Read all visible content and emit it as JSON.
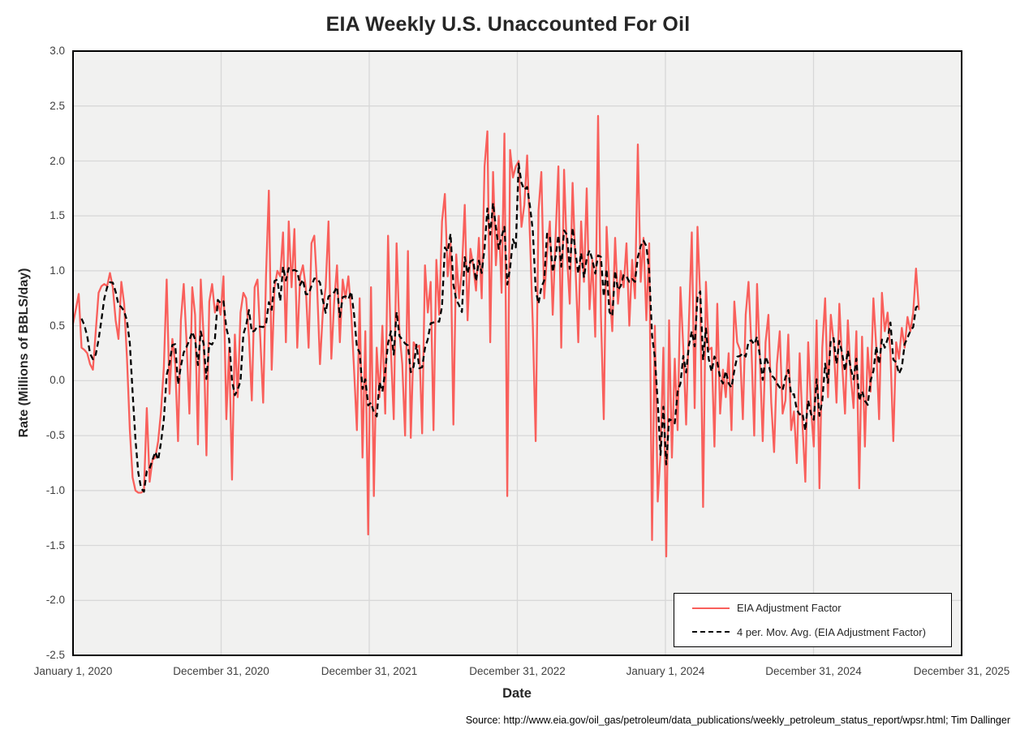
{
  "page": {
    "source_note": "Source: http://www.eia.gov/oil_gas/petroleum/data_publications/weekly_petroleum_status_report/wpsr.html; Tim Dallinger"
  },
  "chart_data": {
    "type": "line",
    "title": "EIA Weekly U.S. Unaccounted For Oil",
    "xlabel": "Date",
    "ylabel": "Rate (Millions of BBLS/day)",
    "ylim": [
      -2.5,
      3.0
    ],
    "ytick_step": 0.5,
    "grid": true,
    "plot_bg_color": "#F1F1F0",
    "grid_color": "#D8D8D8",
    "axis_border_color": "#000000",
    "legend_position": "bottom-right",
    "x_frequency": "weekly",
    "points_per_year": 52.18,
    "x_tick_labels": [
      "January 1, 2020",
      "December 31, 2020",
      "December 31, 2021",
      "December 31, 2022",
      "January 1, 2024",
      "December 31, 2024",
      "December 31, 2025"
    ],
    "series": [
      {
        "name": "EIA Adjustment Factor",
        "color": "#F95F5B",
        "line_style": "solid",
        "start_label": "January 1, 2020",
        "values": [
          0.52,
          0.65,
          0.79,
          0.3,
          0.28,
          0.25,
          0.15,
          0.1,
          0.45,
          0.8,
          0.86,
          0.88,
          0.86,
          0.98,
          0.85,
          0.55,
          0.38,
          0.9,
          0.7,
          0.2,
          -0.45,
          -0.88,
          -1.0,
          -1.02,
          -1.02,
          -1.0,
          -0.25,
          -0.92,
          -0.72,
          -0.7,
          -0.55,
          -0.28,
          0.12,
          0.92,
          -0.12,
          0.38,
          0.15,
          -0.55,
          0.55,
          0.88,
          0.35,
          -0.3,
          0.85,
          0.6,
          -0.58,
          0.92,
          0.4,
          -0.68,
          0.72,
          0.88,
          0.62,
          0.72,
          0.6,
          0.95,
          -0.35,
          0.3,
          -0.9,
          0.42,
          -0.15,
          0.62,
          0.8,
          0.75,
          0.4,
          -0.18,
          0.85,
          0.92,
          0.38,
          -0.2,
          0.95,
          1.73,
          0.1,
          0.85,
          1.0,
          0.95,
          1.35,
          0.35,
          1.45,
          0.85,
          1.38,
          0.3,
          0.95,
          1.05,
          0.85,
          0.3,
          1.25,
          1.32,
          0.85,
          0.15,
          0.62,
          0.85,
          1.45,
          0.2,
          0.72,
          1.05,
          0.35,
          0.92,
          0.75,
          0.95,
          0.62,
          0.1,
          -0.45,
          0.75,
          -0.7,
          0.45,
          -1.4,
          0.85,
          -1.05,
          0.3,
          -0.15,
          0.5,
          -0.3,
          1.32,
          0.28,
          -0.35,
          1.25,
          0.45,
          0.15,
          -0.5,
          1.18,
          -0.52,
          0.35,
          0.3,
          0.32,
          -0.48,
          1.05,
          0.62,
          0.9,
          -0.45,
          1.1,
          0.6,
          1.45,
          1.7,
          0.95,
          1.25,
          -0.4,
          1.15,
          0.75,
          1.0,
          1.6,
          0.55,
          1.2,
          1.05,
          0.82,
          1.3,
          0.75,
          1.95,
          2.27,
          0.35,
          1.9,
          1.05,
          1.5,
          0.8,
          2.25,
          -1.05,
          2.1,
          1.85,
          1.95,
          2.0,
          1.4,
          1.6,
          2.05,
          1.3,
          0.5,
          -0.55,
          1.55,
          1.9,
          0.75,
          1.15,
          1.45,
          0.6,
          1.3,
          1.95,
          0.3,
          1.92,
          1.15,
          0.7,
          1.8,
          1.05,
          0.35,
          1.45,
          0.9,
          1.75,
          0.65,
          1.1,
          0.4,
          2.41,
          0.6,
          -0.35,
          1.4,
          0.85,
          0.45,
          1.3,
          0.7,
          1.0,
          0.85,
          1.25,
          0.5,
          1.1,
          0.75,
          2.15,
          0.9,
          1.3,
          0.55,
          1.25,
          -1.45,
          0.5,
          -1.1,
          -0.65,
          0.3,
          -1.6,
          0.55,
          -0.7,
          0.2,
          -0.45,
          0.85,
          0.3,
          -0.4,
          0.55,
          1.35,
          -0.25,
          1.4,
          0.75,
          -1.15,
          0.9,
          0.28,
          0.3,
          -0.6,
          0.7,
          -0.3,
          0.1,
          -0.15,
          0.25,
          -0.45,
          0.72,
          0.35,
          0.28,
          -0.35,
          0.6,
          0.9,
          0.32,
          -0.5,
          0.88,
          0.2,
          -0.55,
          0.35,
          0.6,
          -0.2,
          -0.65,
          0.15,
          0.45,
          -0.3,
          -0.18,
          0.42,
          -0.45,
          -0.28,
          -0.75,
          0.25,
          -0.4,
          -0.92,
          0.35,
          -0.25,
          -0.6,
          0.55,
          -0.98,
          0.3,
          0.75,
          -0.15,
          0.6,
          0.35,
          -0.2,
          0.7,
          0.15,
          -0.3,
          0.55,
          0.05,
          -0.25,
          0.45,
          -0.98,
          0.4,
          -0.6,
          0.3,
          -0.1,
          0.75,
          0.3,
          -0.35,
          0.8,
          0.45,
          0.62,
          0.25,
          -0.55,
          0.35,
          0.2,
          0.48,
          0.3,
          0.58,
          0.45,
          0.62,
          1.02,
          0.65
        ]
      },
      {
        "name": "4 per. Mov. Avg. (EIA Adjustment Factor)",
        "color": "#000000",
        "line_style": "dashed",
        "derived_from": "4-period trailing moving average of EIA Adjustment Factor"
      }
    ]
  }
}
